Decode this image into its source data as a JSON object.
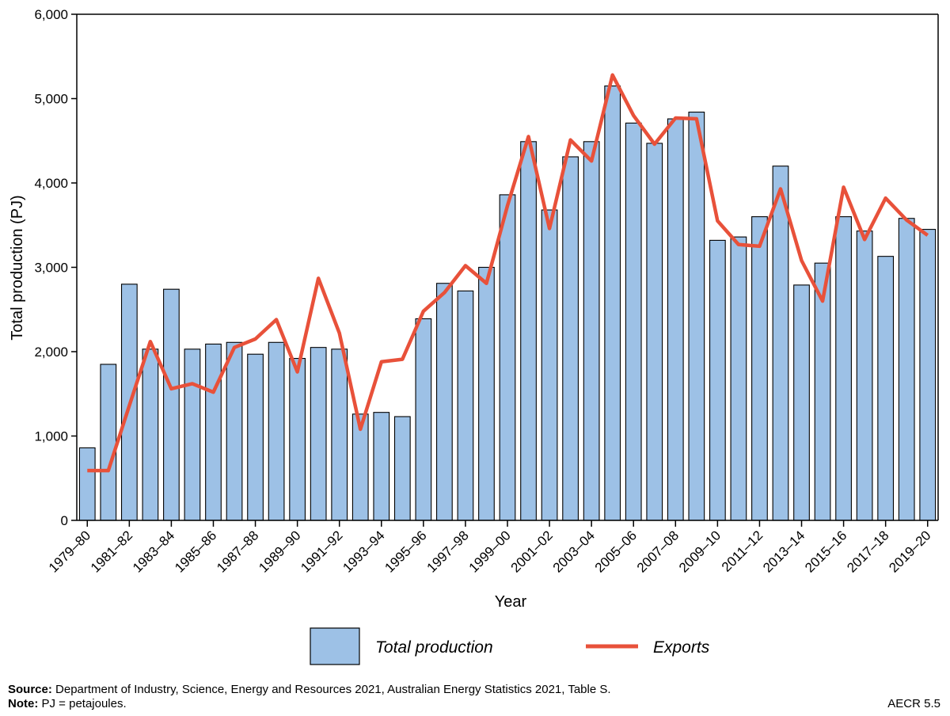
{
  "chart_data": {
    "type": "bar",
    "title": "",
    "xlabel": "Year",
    "ylabel": "Total production (PJ)",
    "ylim": [
      0,
      6000
    ],
    "yticks": [
      0,
      1000,
      2000,
      3000,
      4000,
      5000,
      6000
    ],
    "ytick_labels": [
      "0",
      "1,000",
      "2,000",
      "3,000",
      "4,000",
      "5,000",
      "6,000"
    ],
    "categories": [
      "1979–80",
      "1980–81",
      "1981–82",
      "1982–83",
      "1983–84",
      "1984–85",
      "1985–86",
      "1986–87",
      "1987–88",
      "1988–89",
      "1989–90",
      "1990–91",
      "1991–92",
      "1992–93",
      "1993–94",
      "1994–95",
      "1995–96",
      "1996–97",
      "1997–98",
      "1998–99",
      "1999–00",
      "2000–01",
      "2001–02",
      "2002–03",
      "2003–04",
      "2004–05",
      "2005–06",
      "2006–07",
      "2007–08",
      "2008–09",
      "2009–10",
      "2010–11",
      "2011–12",
      "2012–13",
      "2013–14",
      "2014–15",
      "2015–16",
      "2016–17",
      "2017–18",
      "2018–19",
      "2019–20"
    ],
    "xtick_labels": [
      "1979–80",
      "1981–82",
      "1983–84",
      "1985–86",
      "1987–88",
      "1989–90",
      "1991–92",
      "1993–94",
      "1995–96",
      "1997–98",
      "1999–00",
      "2001–02",
      "2003–04",
      "2005–06",
      "2007–08",
      "2009–10",
      "2011–12",
      "2013–14",
      "2015–16",
      "2017–18",
      "2019–20"
    ],
    "series": [
      {
        "name": "Total production",
        "type": "bar",
        "color": "#9dc1e6",
        "values": [
          860,
          1850,
          2800,
          2030,
          2740,
          2030,
          2090,
          2110,
          1970,
          2110,
          1920,
          2050,
          2030,
          1260,
          1280,
          1230,
          2390,
          2810,
          2720,
          3000,
          3860,
          4490,
          3680,
          4310,
          4490,
          5150,
          4710,
          4470,
          4760,
          4840,
          3320,
          3360,
          3600,
          4200,
          2790,
          3050,
          3600,
          3430,
          3130,
          3580,
          3450
        ]
      },
      {
        "name": "Exports",
        "type": "line",
        "color": "#e8513a",
        "values": [
          590,
          590,
          1360,
          2120,
          1560,
          1620,
          1520,
          2050,
          2150,
          2380,
          1760,
          2870,
          2220,
          1080,
          1880,
          1910,
          2480,
          2700,
          3020,
          2810,
          3730,
          4550,
          3460,
          4510,
          4260,
          5280,
          4800,
          4460,
          4770,
          4760,
          3550,
          3270,
          3250,
          3930,
          3080,
          2600,
          3950,
          3330,
          3820,
          3560,
          3380
        ]
      }
    ],
    "legend": {
      "position": "bottom-center",
      "entries": [
        "Total production",
        "Exports"
      ]
    }
  },
  "footer": {
    "source_label": "Source:",
    "source_text": " Department of Industry, Science, Energy and Resources 2021, Australian Energy Statistics 2021, Table S.",
    "note_label": "Note:",
    "note_text": " PJ = petajoules.",
    "figure_id": "AECR 5.5"
  }
}
